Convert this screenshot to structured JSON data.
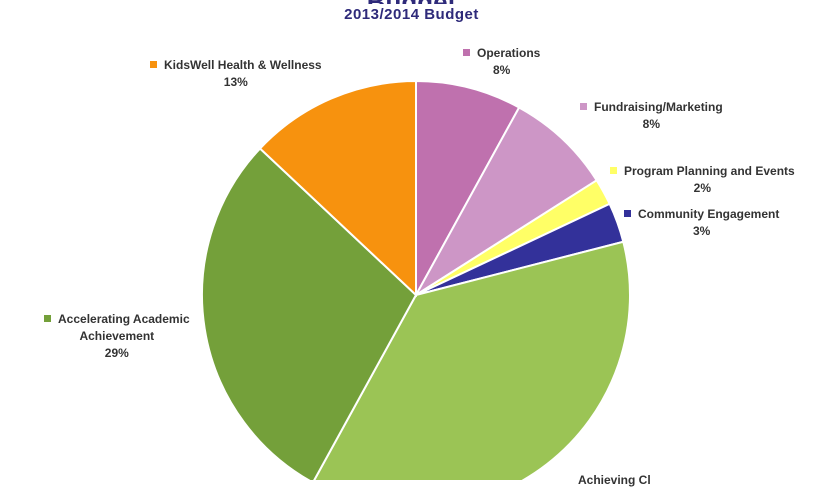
{
  "chart_data": {
    "type": "pie",
    "title": "",
    "subtitle": "2013/2014 Budget",
    "legend": "labels-beside-slices",
    "slices": [
      {
        "label": "Operations",
        "value": 8,
        "value_label": "8%",
        "color": "#bf71ae"
      },
      {
        "label": "Fundraising/Marketing",
        "value": 8,
        "value_label": "8%",
        "color": "#cd96c6"
      },
      {
        "label": "Program Planning and Events",
        "value": 2,
        "value_label": "2%",
        "color": "#ffff66"
      },
      {
        "label": "Community Engagement",
        "value": 3,
        "value_label": "3%",
        "color": "#33319a"
      },
      {
        "label": "Achieving Cl",
        "value": 37,
        "value_label": "",
        "color": "#9bc455"
      },
      {
        "label": "Accelerating Academic Achievement",
        "value": 29,
        "value_label": "29%",
        "color": "#74a03a"
      },
      {
        "label": "KidsWell Health & Wellness",
        "value": 13,
        "value_label": "13%",
        "color": "#f7920e"
      }
    ]
  }
}
